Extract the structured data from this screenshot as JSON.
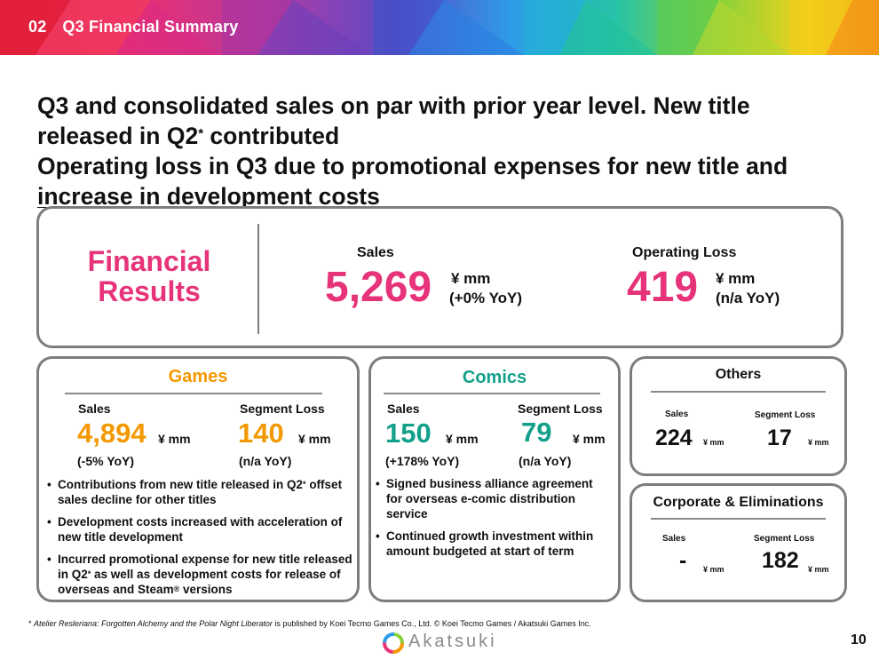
{
  "banner": {
    "section_number": "02",
    "section_title": "Q3 Financial Summary"
  },
  "headline": {
    "line1": "Q3 and consolidated sales on par with prior year level. New title",
    "line2_pre": "released in Q2",
    "line2_sup": "*",
    "line2_post": " contributed",
    "line3": "Operating loss in Q3 due to promotional expenses for new title and",
    "line4": "increase in development costs"
  },
  "financial_results": {
    "title_line1": "Financial",
    "title_line2": "Results",
    "sales_label": "Sales",
    "sales_value": "5,269",
    "sales_unit": "¥ mm",
    "sales_yoy": "(+0% YoY)",
    "op_label": "Operating Loss",
    "op_value": "419",
    "op_unit": "¥ mm",
    "op_yoy": "(n/a YoY)"
  },
  "games": {
    "title": "Games",
    "sales_label": "Sales",
    "sales_value": "4,894",
    "sales_unit": "¥ mm",
    "sales_yoy": "(-5% YoY)",
    "loss_label": "Segment Loss",
    "loss_value": "140",
    "loss_unit": "¥ mm",
    "loss_yoy": "(n/a YoY)",
    "bullets": [
      {
        "pre": "Contributions from new title released in Q2",
        "sup": "*",
        "post": " offset sales decline for other titles"
      },
      {
        "pre": "Development costs increased with acceleration of new title development",
        "sup": "",
        "post": ""
      },
      {
        "pre": "Incurred promotional expense for new title released in Q2",
        "sup": "*",
        "post": " as well as development costs for release of overseas and Steam",
        "sup2": "®",
        "post2": " versions"
      }
    ]
  },
  "comics": {
    "title": "Comics",
    "sales_label": "Sales",
    "sales_value": "150",
    "sales_unit": "¥ mm",
    "sales_yoy": "(+178% YoY)",
    "loss_label": "Segment Loss",
    "loss_value": "79",
    "loss_unit": "¥ mm",
    "loss_yoy": "(n/a YoY)",
    "bullets": [
      "Signed business alliance agreement for overseas e-comic distribution service",
      "Continued growth investment within amount budgeted at start of term"
    ]
  },
  "others": {
    "title": "Others",
    "sales_label": "Sales",
    "sales_value": "224",
    "sales_unit": "¥ mm",
    "loss_label": "Segment Loss",
    "loss_value": "17",
    "loss_unit": "¥ mm"
  },
  "corporate": {
    "title": "Corporate & Eliminations",
    "sales_label": "Sales",
    "sales_value": "-",
    "sales_unit": "¥ mm",
    "loss_label": "Segment Loss",
    "loss_value": "182",
    "loss_unit": "¥ mm"
  },
  "footnote": {
    "mark": "*",
    "title_italic": "Atelier Resleriana: Forgotten Alchemy and the Polar Night Liberator",
    "rest": " is published by Koei Tecmo Games Co., Ltd.  © Koei Tecmo Games / Akatsuki Games Inc."
  },
  "brand": {
    "name": "Akatsuki"
  },
  "page_number": "10",
  "colors": {
    "accent_pink": "#e6337a",
    "games_orange": "#f39800",
    "comics_teal": "#13a08a"
  }
}
